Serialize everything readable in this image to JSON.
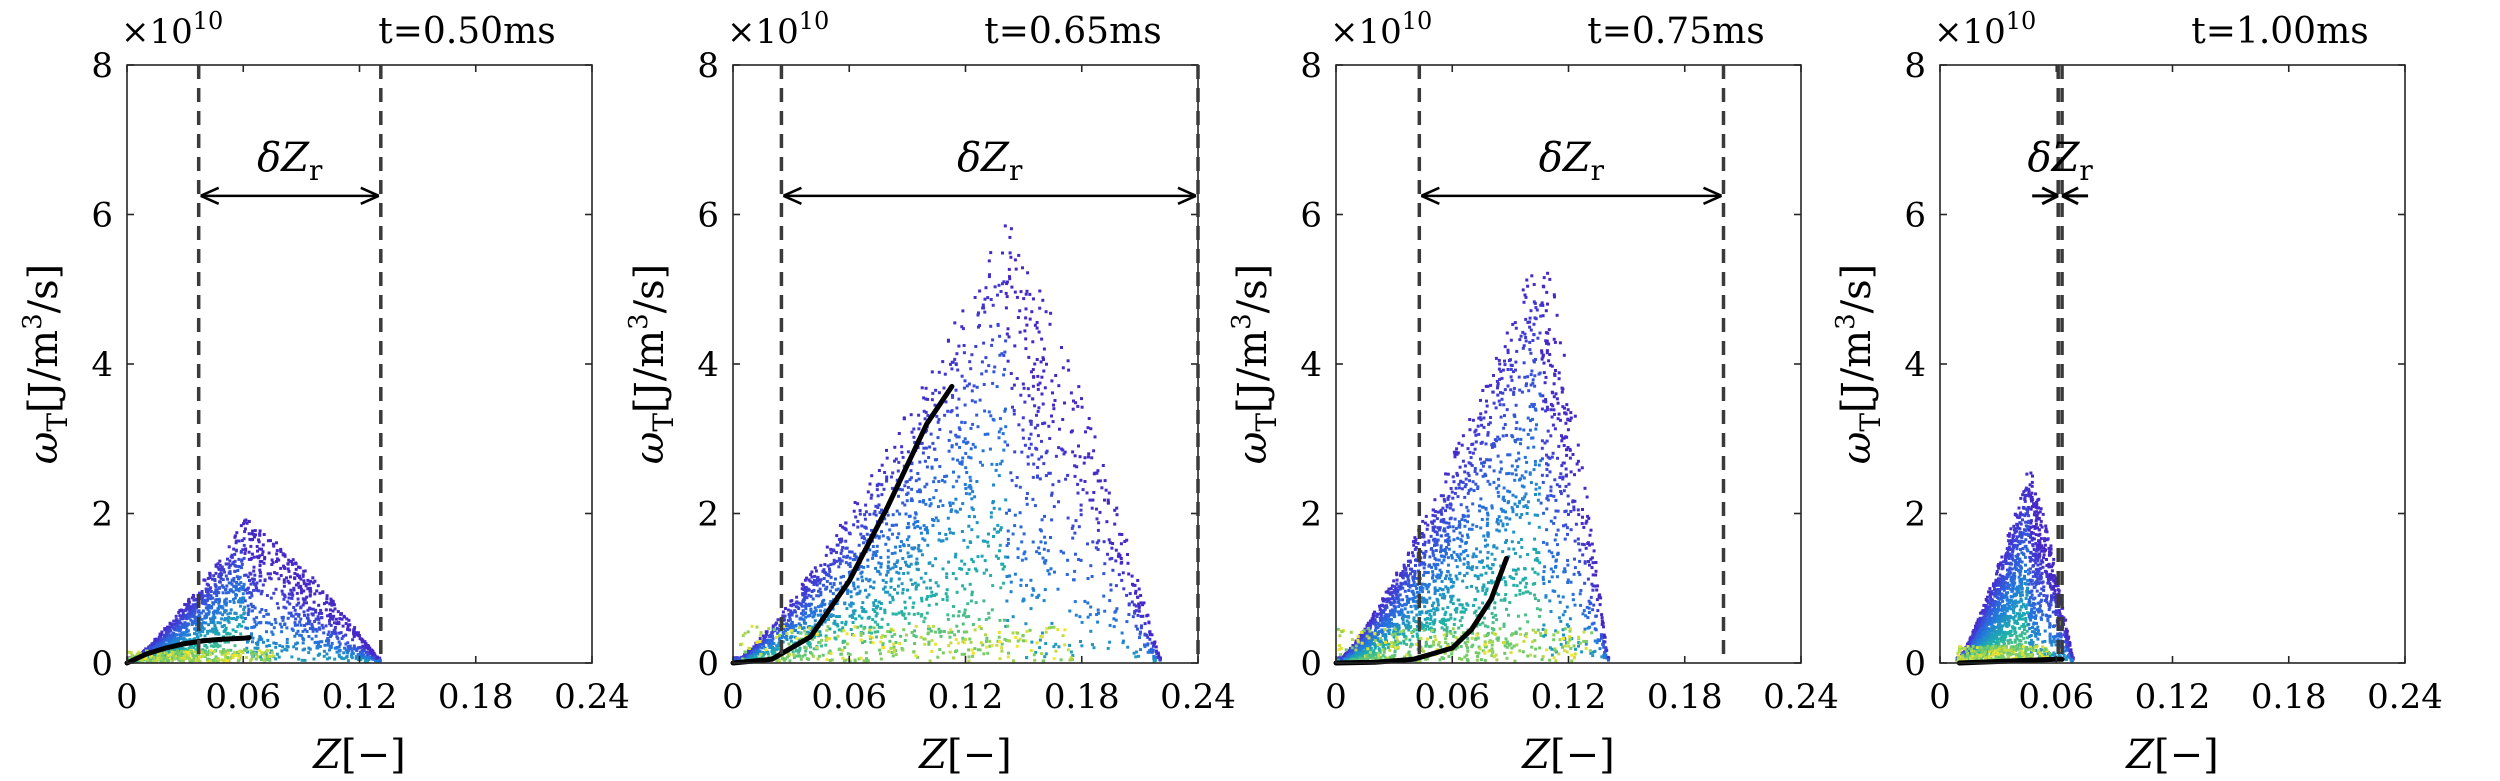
{
  "chart_data": [
    {
      "type": "scatter",
      "title": "t=0.50ms",
      "xlabel": "Z[−]",
      "ylabel": "ωT[J/m3/s]",
      "ylabel_parts": {
        "sym": "ω",
        "sub": "T",
        "unit_a": "[J/m",
        "sup": "3",
        "unit_b": "/s]"
      },
      "xlabel_parts": {
        "sym": "Z",
        "rest": "[−]"
      },
      "y_exponent": {
        "base": "×10",
        "power": "10"
      },
      "xlim": [
        0,
        0.24
      ],
      "ylim": [
        0,
        8
      ],
      "x_ticks": [
        "0",
        "0.06",
        "0.12",
        "0.18",
        "0.24"
      ],
      "y_ticks": [
        "0",
        "2",
        "4",
        "6",
        "8"
      ],
      "delta_z_r": {
        "label_sym": "δZ",
        "label_sub": "r",
        "z_min": 0.037,
        "z_max": 0.131
      },
      "scatter_cloud": {
        "z_max_extent": 0.13,
        "peak_z": 0.06,
        "peak_value": 1.9
      },
      "mean_curve": {
        "x": [
          0.0,
          0.01,
          0.02,
          0.03,
          0.04,
          0.05,
          0.06,
          0.063
        ],
        "y": [
          0.0,
          0.12,
          0.2,
          0.26,
          0.3,
          0.32,
          0.33,
          0.34
        ]
      }
    },
    {
      "type": "scatter",
      "title": "t=0.65ms",
      "xlabel": "Z[−]",
      "ylabel": "ωT[J/m3/s]",
      "ylabel_parts": {
        "sym": "ω",
        "sub": "T",
        "unit_a": "[J/m",
        "sup": "3",
        "unit_b": "/s]"
      },
      "xlabel_parts": {
        "sym": "Z",
        "rest": "[−]"
      },
      "y_exponent": {
        "base": "×10",
        "power": "10"
      },
      "xlim": [
        0,
        0.24
      ],
      "ylim": [
        0,
        8
      ],
      "x_ticks": [
        "0",
        "0.06",
        "0.12",
        "0.18",
        "0.24"
      ],
      "y_ticks": [
        "0",
        "2",
        "4",
        "6",
        "8"
      ],
      "delta_z_r": {
        "label_sym": "δZ",
        "label_sub": "r",
        "z_min": 0.025,
        "z_max": 0.24
      },
      "scatter_cloud": {
        "z_max_extent": 0.22,
        "peak_z": 0.14,
        "peak_value": 5.9
      },
      "mean_curve": {
        "x": [
          0.0,
          0.02,
          0.04,
          0.06,
          0.08,
          0.1,
          0.113
        ],
        "y": [
          0.0,
          0.05,
          0.35,
          1.1,
          2.1,
          3.2,
          3.7
        ]
      }
    },
    {
      "type": "scatter",
      "title": "t=0.75ms",
      "xlabel": "Z[−]",
      "ylabel": "ωT[J/m3/s]",
      "ylabel_parts": {
        "sym": "ω",
        "sub": "T",
        "unit_a": "[J/m",
        "sup": "3",
        "unit_b": "/s]"
      },
      "xlabel_parts": {
        "sym": "Z",
        "rest": "[−]"
      },
      "y_exponent": {
        "base": "×10",
        "power": "10"
      },
      "xlim": [
        0,
        0.24
      ],
      "ylim": [
        0,
        8
      ],
      "x_ticks": [
        "0",
        "0.06",
        "0.12",
        "0.18",
        "0.24"
      ],
      "y_ticks": [
        "0",
        "2",
        "4",
        "6",
        "8"
      ],
      "delta_z_r": {
        "label_sym": "δZ",
        "label_sub": "r",
        "z_min": 0.043,
        "z_max": 0.2
      },
      "scatter_cloud": {
        "z_max_extent": 0.14,
        "peak_z": 0.105,
        "peak_value": 5.6
      },
      "mean_curve": {
        "x": [
          0.0,
          0.02,
          0.04,
          0.06,
          0.07,
          0.08,
          0.088
        ],
        "y": [
          0.0,
          0.01,
          0.05,
          0.2,
          0.45,
          0.85,
          1.4
        ]
      }
    },
    {
      "type": "scatter",
      "title": "t=1.00ms",
      "xlabel": "Z[−]",
      "ylabel": "ωT[J/m3/s]",
      "ylabel_parts": {
        "sym": "ω",
        "sub": "T",
        "unit_a": "[J/m",
        "sup": "3",
        "unit_b": "/s]"
      },
      "xlabel_parts": {
        "sym": "Z",
        "rest": "[−]"
      },
      "y_exponent": {
        "base": "×10",
        "power": "10"
      },
      "xlim": [
        0,
        0.24
      ],
      "ylim": [
        0,
        8
      ],
      "x_ticks": [
        "0",
        "0.06",
        "0.12",
        "0.18",
        "0.24"
      ],
      "y_ticks": [
        "0",
        "2",
        "4",
        "6",
        "8"
      ],
      "delta_z_r": {
        "label_sym": "δZ",
        "label_sub": "r",
        "z_min": 0.061,
        "z_max": 0.063
      },
      "scatter_cloud": {
        "z_max_extent": 0.068,
        "peak_z": 0.045,
        "peak_value": 2.6
      },
      "mean_curve": {
        "x": [
          0.01,
          0.02,
          0.03,
          0.04,
          0.05,
          0.06,
          0.063
        ],
        "y": [
          0.0,
          0.01,
          0.02,
          0.03,
          0.04,
          0.05,
          0.05
        ]
      }
    }
  ]
}
